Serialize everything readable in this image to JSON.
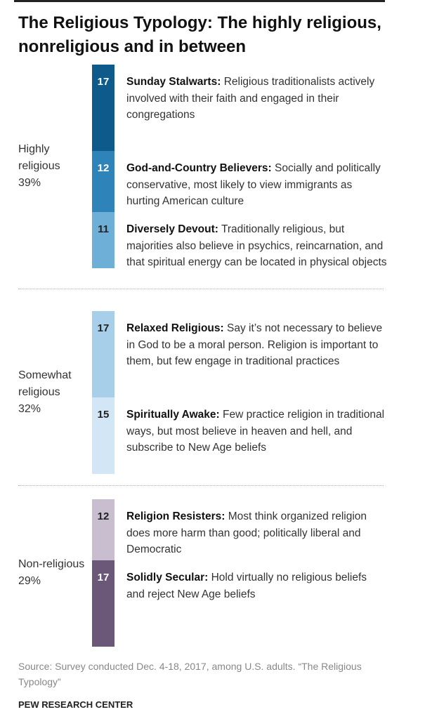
{
  "chart_data": {
    "type": "typology",
    "title": "The Religious Typology: The highly religious, nonreligious and in between",
    "groups": [
      {
        "name": "Highly religious",
        "share": 39,
        "share_label": "39%",
        "segments": [
          {
            "value": 17,
            "name": "Sunday Stalwarts:",
            "description": "Religious traditionalists actively involved with their faith and engaged in their congregations",
            "color": "#0e5a8a"
          },
          {
            "value": 12,
            "name": "God-and-Country Believers:",
            "description": "Socially and politically conservative, most likely to view immigrants as hurting American culture",
            "color": "#2e84b8"
          },
          {
            "value": 11,
            "name": "Diversely Devout:",
            "description": "Traditionally religious, but majorities also believe in psychics, reincarnation, and that spiritual energy can be located in physical objects",
            "color": "#6eafd8"
          }
        ]
      },
      {
        "name": "Somewhat religious",
        "share": 32,
        "share_label": "32%",
        "segments": [
          {
            "value": 17,
            "name": "Relaxed Religious:",
            "description": "Say it’s not necessary to believe in God to be a moral person. Religion is important to them, but few engage in traditional practices",
            "color": "#a7cfea"
          },
          {
            "value": 15,
            "name": "Spiritually Awake:",
            "description": "Few practice religion in traditional ways, but most believe in heaven and hell, and subscribe to New Age beliefs",
            "color": "#d3e6f5"
          }
        ]
      },
      {
        "name": "Non-religious",
        "share": 29,
        "share_label": "29%",
        "segments": [
          {
            "value": 12,
            "name": "Religion Resisters:",
            "description": "Most think organized religion does more harm than good; politically liberal and Democratic",
            "color": "#c8bed0"
          },
          {
            "value": 17,
            "name": "Solidly Secular:",
            "description": "Hold virtually no religious beliefs and reject New Age beliefs",
            "color": "#6b5878"
          }
        ]
      }
    ],
    "source": "Source: Survey conducted Dec. 4-18, 2017, among U.S. adults. “The Religious Typology”",
    "credit": "PEW RESEARCH CENTER"
  }
}
